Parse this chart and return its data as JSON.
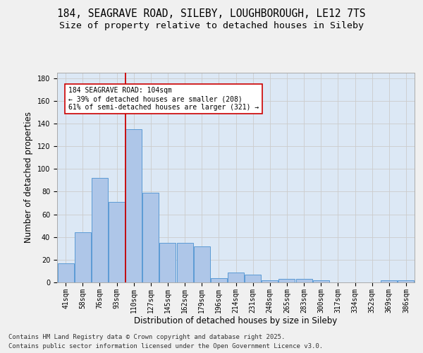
{
  "title_line1": "184, SEAGRAVE ROAD, SILEBY, LOUGHBOROUGH, LE12 7TS",
  "title_line2": "Size of property relative to detached houses in Sileby",
  "xlabel": "Distribution of detached houses by size in Sileby",
  "ylabel": "Number of detached properties",
  "bar_labels": [
    "41sqm",
    "58sqm",
    "76sqm",
    "93sqm",
    "110sqm",
    "127sqm",
    "145sqm",
    "162sqm",
    "179sqm",
    "196sqm",
    "214sqm",
    "231sqm",
    "248sqm",
    "265sqm",
    "283sqm",
    "300sqm",
    "317sqm",
    "334sqm",
    "352sqm",
    "369sqm",
    "386sqm"
  ],
  "bar_values": [
    17,
    44,
    92,
    71,
    135,
    79,
    35,
    35,
    32,
    4,
    9,
    7,
    2,
    3,
    3,
    2,
    0,
    0,
    0,
    2,
    2
  ],
  "bar_color": "#aec6e8",
  "bar_edge_color": "#5b9bd5",
  "vline_color": "#cc0000",
  "annotation_text": "184 SEAGRAVE ROAD: 104sqm\n← 39% of detached houses are smaller (208)\n61% of semi-detached houses are larger (321) →",
  "annotation_box_color": "#ffffff",
  "annotation_box_edge": "#cc0000",
  "ylim": [
    0,
    185
  ],
  "yticks": [
    0,
    20,
    40,
    60,
    80,
    100,
    120,
    140,
    160,
    180
  ],
  "grid_color": "#cccccc",
  "bg_color": "#dce8f5",
  "fig_bg_color": "#f0f0f0",
  "footer_line1": "Contains HM Land Registry data © Crown copyright and database right 2025.",
  "footer_line2": "Contains public sector information licensed under the Open Government Licence v3.0.",
  "title_fontsize": 10.5,
  "subtitle_fontsize": 9.5,
  "ylabel_fontsize": 8.5,
  "xlabel_fontsize": 8.5,
  "tick_fontsize": 7,
  "annot_fontsize": 7,
  "footer_fontsize": 6.5
}
